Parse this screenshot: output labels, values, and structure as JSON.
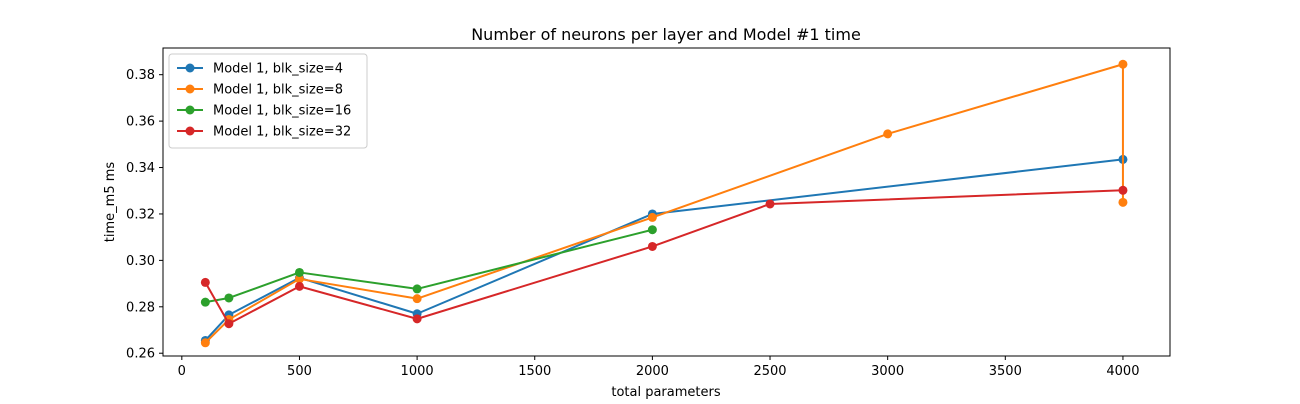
{
  "chart_data": {
    "type": "line",
    "title": "Number of neurons per layer and Model #1 time",
    "xlabel": "total parameters",
    "ylabel": "time_m5 ms",
    "xlim": [
      -80,
      4200
    ],
    "ylim": [
      0.2588,
      0.3915
    ],
    "xticks": [
      0,
      500,
      1000,
      1500,
      2000,
      2500,
      3000,
      3500,
      4000
    ],
    "xtick_labels": [
      "0",
      "500",
      "1000",
      "1500",
      "2000",
      "2500",
      "3000",
      "3500",
      "4000"
    ],
    "yticks": [
      0.26,
      0.28,
      0.3,
      0.32,
      0.34,
      0.36,
      0.38
    ],
    "ytick_labels": [
      "0.26",
      "0.28",
      "0.30",
      "0.32",
      "0.34",
      "0.36",
      "0.38"
    ],
    "grid": false,
    "legend_position": "top-left",
    "series": [
      {
        "name": "Model 1, blk_size=4",
        "color": "#1f77b4",
        "x": [
          100,
          200,
          500,
          1000,
          2000,
          4000
        ],
        "y": [
          0.2655,
          0.2765,
          0.2925,
          0.277,
          0.32,
          0.3435
        ]
      },
      {
        "name": "Model 1, blk_size=8",
        "color": "#ff7f0e",
        "x": [
          100,
          200,
          500,
          1000,
          2000,
          3000,
          4000,
          4000
        ],
        "y": [
          0.2645,
          0.2745,
          0.292,
          0.2835,
          0.3185,
          0.3545,
          0.3845,
          0.325
        ]
      },
      {
        "name": "Model 1, blk_size=16",
        "color": "#2ca02c",
        "x": [
          100,
          200,
          500,
          1000,
          2000
        ],
        "y": [
          0.282,
          0.2838,
          0.2948,
          0.2877,
          0.3132
        ]
      },
      {
        "name": "Model 1, blk_size=32",
        "color": "#d62728",
        "x": [
          100,
          200,
          500,
          1000,
          2000,
          2500,
          4000
        ],
        "y": [
          0.2905,
          0.2727,
          0.2888,
          0.2748,
          0.306,
          0.3243,
          0.3302
        ]
      }
    ]
  }
}
